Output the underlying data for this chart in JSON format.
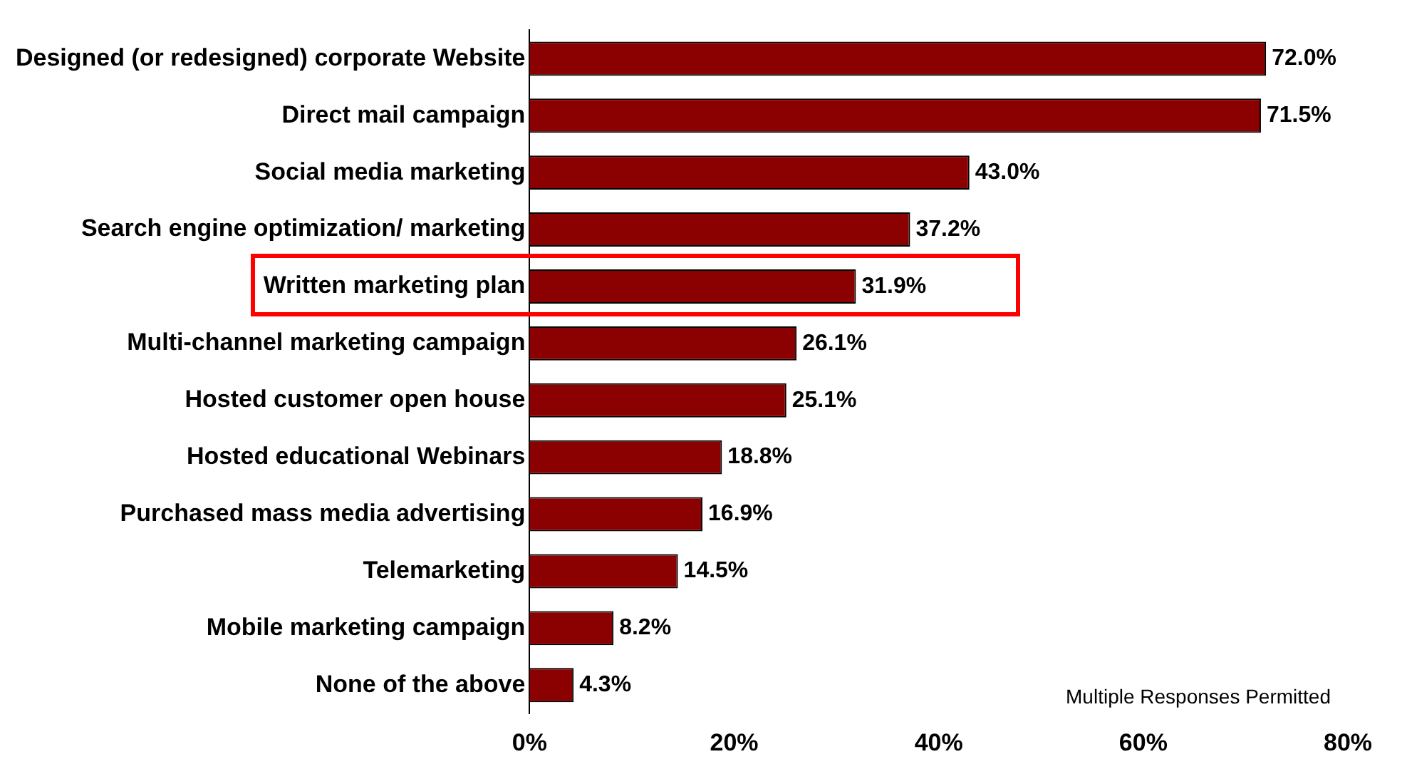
{
  "chart_data": {
    "type": "bar",
    "orientation": "horizontal",
    "categories": [
      "Designed (or redesigned) corporate Website",
      "Direct mail campaign",
      "Social media marketing",
      "Search engine optimization/ marketing",
      "Written marketing plan",
      "Multi-channel marketing campaign",
      "Hosted customer open house",
      "Hosted educational Webinars",
      "Purchased mass media advertising",
      "Telemarketing",
      "Mobile marketing campaign",
      "None of the above"
    ],
    "values": [
      72.0,
      71.5,
      43.0,
      37.2,
      31.9,
      26.1,
      25.1,
      18.8,
      16.9,
      14.5,
      8.2,
      4.3
    ],
    "value_labels": [
      "72.0%",
      "71.5%",
      "43.0%",
      "37.2%",
      "31.9%",
      "26.1%",
      "25.1%",
      "18.8%",
      "16.9%",
      "14.5%",
      "8.2%",
      "4.3%"
    ],
    "color": "#8b0000",
    "xlim": [
      0,
      80
    ],
    "xticks": [
      {
        "value": 0,
        "label": "0%"
      },
      {
        "value": 20,
        "label": "20%"
      },
      {
        "value": 40,
        "label": "40%"
      },
      {
        "value": 60,
        "label": "60%"
      },
      {
        "value": 80,
        "label": "80%"
      }
    ],
    "grid": false,
    "legend": false,
    "annotations": [
      "Multiple Responses Permitted"
    ]
  }
}
